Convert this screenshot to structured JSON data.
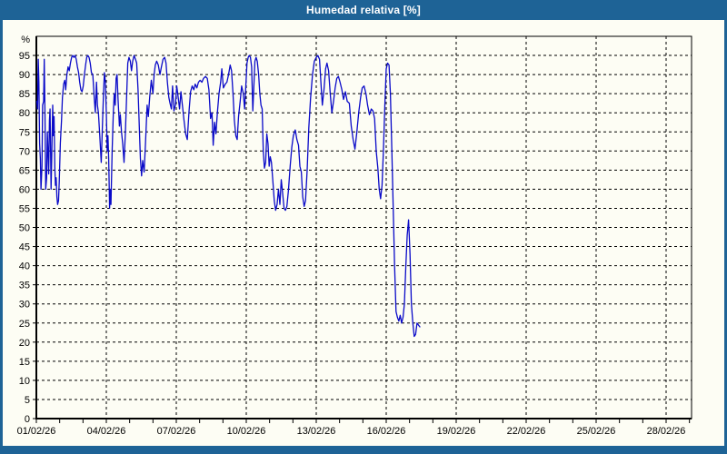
{
  "window": {
    "title": "Humedad relativa [%]"
  },
  "colors": {
    "frame": "#1E6396",
    "title_text": "#FFFFFF",
    "plot_background": "#FDFDF4",
    "line": "#0A0AC8",
    "grid_and_axis": "#000000"
  },
  "chart_data": {
    "type": "line",
    "title": "Humedad relativa [%]",
    "ylabel": "%",
    "xlabel": "",
    "ylim": [
      0,
      100
    ],
    "xlim_days": [
      0,
      28.1
    ],
    "grid": "dashed",
    "legend": "none",
    "y_ticks": [
      0,
      5,
      10,
      15,
      20,
      25,
      30,
      35,
      40,
      45,
      50,
      55,
      60,
      65,
      70,
      75,
      80,
      85,
      90,
      95
    ],
    "x_tick_days": [
      0,
      3,
      6,
      9,
      12,
      15,
      18,
      21,
      24,
      27
    ],
    "x_tick_labels": [
      "01/02/26",
      "04/02/26",
      "07/02/26",
      "10/02/26",
      "13/02/26",
      "16/02/26",
      "19/02/26",
      "22/02/26",
      "25/02/26",
      "28/02/26"
    ],
    "x_minor_tick_interval_days": 1,
    "series": [
      {
        "name": "Humedad relativa",
        "points": [
          [
            0.02,
            83
          ],
          [
            0.05,
            81
          ],
          [
            0.08,
            94
          ],
          [
            0.11,
            88
          ],
          [
            0.14,
            72
          ],
          [
            0.17,
            68
          ],
          [
            0.2,
            60
          ],
          [
            0.24,
            66
          ],
          [
            0.27,
            82
          ],
          [
            0.31,
            83
          ],
          [
            0.34,
            94
          ],
          [
            0.37,
            80
          ],
          [
            0.4,
            60
          ],
          [
            0.44,
            63
          ],
          [
            0.47,
            75
          ],
          [
            0.5,
            70
          ],
          [
            0.53,
            64
          ],
          [
            0.56,
            78
          ],
          [
            0.59,
            81
          ],
          [
            0.63,
            60
          ],
          [
            0.66,
            68
          ],
          [
            0.7,
            82
          ],
          [
            0.73,
            74
          ],
          [
            0.76,
            79
          ],
          [
            0.79,
            66
          ],
          [
            0.82,
            61
          ],
          [
            0.85,
            63
          ],
          [
            0.88,
            58
          ],
          [
            0.91,
            56
          ],
          [
            0.95,
            57
          ],
          [
            0.98,
            62
          ],
          [
            1.03,
            72
          ],
          [
            1.08,
            78
          ],
          [
            1.12,
            84
          ],
          [
            1.17,
            87.5
          ],
          [
            1.22,
            88.5
          ],
          [
            1.26,
            86
          ],
          [
            1.31,
            90
          ],
          [
            1.36,
            92
          ],
          [
            1.41,
            91
          ],
          [
            1.46,
            93
          ],
          [
            1.51,
            94.5
          ],
          [
            1.56,
            95
          ],
          [
            1.61,
            94.5
          ],
          [
            1.66,
            95
          ],
          [
            1.71,
            94
          ],
          [
            1.76,
            92
          ],
          [
            1.81,
            90.5
          ],
          [
            1.86,
            88
          ],
          [
            1.91,
            86
          ],
          [
            1.96,
            85.5
          ],
          [
            2.01,
            87
          ],
          [
            2.06,
            90
          ],
          [
            2.11,
            92.5
          ],
          [
            2.16,
            94.5
          ],
          [
            2.21,
            95
          ],
          [
            2.26,
            94.5
          ],
          [
            2.31,
            93
          ],
          [
            2.36,
            90.5
          ],
          [
            2.42,
            90
          ],
          [
            2.48,
            84
          ],
          [
            2.53,
            80
          ],
          [
            2.58,
            88
          ],
          [
            2.62,
            82
          ],
          [
            2.66,
            80
          ],
          [
            2.72,
            74
          ],
          [
            2.78,
            67
          ],
          [
            2.84,
            78
          ],
          [
            2.88,
            85
          ],
          [
            2.92,
            90.5
          ],
          [
            2.96,
            88
          ],
          [
            3.0,
            80
          ],
          [
            3.04,
            70
          ],
          [
            3.07,
            74
          ],
          [
            3.1,
            68
          ],
          [
            3.14,
            55
          ],
          [
            3.17,
            60
          ],
          [
            3.2,
            56
          ],
          [
            3.25,
            70
          ],
          [
            3.3,
            80
          ],
          [
            3.34,
            85
          ],
          [
            3.38,
            82
          ],
          [
            3.42,
            89
          ],
          [
            3.46,
            90
          ],
          [
            3.5,
            84
          ],
          [
            3.56,
            76.5
          ],
          [
            3.6,
            79.5
          ],
          [
            3.65,
            75
          ],
          [
            3.7,
            72
          ],
          [
            3.76,
            67
          ],
          [
            3.82,
            75
          ],
          [
            3.88,
            86
          ],
          [
            3.92,
            93
          ],
          [
            3.97,
            94.5
          ],
          [
            4.03,
            93.5
          ],
          [
            4.08,
            91
          ],
          [
            4.13,
            93.5
          ],
          [
            4.19,
            95
          ],
          [
            4.25,
            94
          ],
          [
            4.3,
            93
          ],
          [
            4.36,
            86
          ],
          [
            4.4,
            79
          ],
          [
            4.46,
            68
          ],
          [
            4.51,
            63.5
          ],
          [
            4.56,
            67.5
          ],
          [
            4.62,
            64.5
          ],
          [
            4.68,
            72
          ],
          [
            4.75,
            82
          ],
          [
            4.8,
            79
          ],
          [
            4.86,
            84
          ],
          [
            4.93,
            88.5
          ],
          [
            5.0,
            85
          ],
          [
            5.05,
            90
          ],
          [
            5.1,
            92.5
          ],
          [
            5.16,
            93.5
          ],
          [
            5.23,
            92.5
          ],
          [
            5.3,
            90
          ],
          [
            5.36,
            92
          ],
          [
            5.43,
            94
          ],
          [
            5.5,
            94.5
          ],
          [
            5.56,
            93
          ],
          [
            5.62,
            88
          ],
          [
            5.68,
            84
          ],
          [
            5.73,
            82.5
          ],
          [
            5.79,
            81
          ],
          [
            5.84,
            87
          ],
          [
            5.9,
            80.5
          ],
          [
            5.96,
            82
          ],
          [
            6.02,
            87
          ],
          [
            6.08,
            84
          ],
          [
            6.14,
            81
          ],
          [
            6.2,
            85.5
          ],
          [
            6.26,
            82
          ],
          [
            6.33,
            78
          ],
          [
            6.4,
            74.5
          ],
          [
            6.47,
            73
          ],
          [
            6.54,
            80
          ],
          [
            6.61,
            85.5
          ],
          [
            6.68,
            87
          ],
          [
            6.75,
            86
          ],
          [
            6.81,
            87.5
          ],
          [
            6.88,
            86.5
          ],
          [
            6.95,
            88
          ],
          [
            7.02,
            88.5
          ],
          [
            7.1,
            88
          ],
          [
            7.17,
            89
          ],
          [
            7.25,
            89.5
          ],
          [
            7.33,
            89
          ],
          [
            7.4,
            86
          ],
          [
            7.47,
            78.5
          ],
          [
            7.53,
            80
          ],
          [
            7.58,
            71.5
          ],
          [
            7.64,
            77.5
          ],
          [
            7.7,
            74.5
          ],
          [
            7.76,
            80
          ],
          [
            7.83,
            85
          ],
          [
            7.9,
            88
          ],
          [
            7.95,
            91.5
          ],
          [
            8.02,
            86.5
          ],
          [
            8.1,
            87.5
          ],
          [
            8.17,
            88
          ],
          [
            8.24,
            90
          ],
          [
            8.31,
            92.5
          ],
          [
            8.37,
            91
          ],
          [
            8.43,
            85
          ],
          [
            8.49,
            78
          ],
          [
            8.55,
            74
          ],
          [
            8.61,
            73
          ],
          [
            8.67,
            79
          ],
          [
            8.74,
            83
          ],
          [
            8.8,
            87
          ],
          [
            8.87,
            85
          ],
          [
            8.93,
            81
          ],
          [
            8.98,
            87
          ],
          [
            9.03,
            93
          ],
          [
            9.08,
            94.5
          ],
          [
            9.13,
            95
          ],
          [
            9.18,
            94.5
          ],
          [
            9.23,
            92
          ],
          [
            9.28,
            80.5
          ],
          [
            9.32,
            86
          ],
          [
            9.37,
            93.5
          ],
          [
            9.42,
            94.5
          ],
          [
            9.47,
            93.5
          ],
          [
            9.53,
            90
          ],
          [
            9.58,
            85
          ],
          [
            9.63,
            82
          ],
          [
            9.68,
            81
          ],
          [
            9.73,
            70
          ],
          [
            9.78,
            65.5
          ],
          [
            9.83,
            67
          ],
          [
            9.88,
            74.5
          ],
          [
            9.93,
            72
          ],
          [
            9.98,
            66
          ],
          [
            10.03,
            68.5
          ],
          [
            10.08,
            67
          ],
          [
            10.14,
            62
          ],
          [
            10.2,
            57
          ],
          [
            10.26,
            54.5
          ],
          [
            10.32,
            56
          ],
          [
            10.38,
            60
          ],
          [
            10.44,
            56
          ],
          [
            10.5,
            62.5
          ],
          [
            10.56,
            59
          ],
          [
            10.62,
            55
          ],
          [
            10.68,
            54.5
          ],
          [
            10.74,
            55.5
          ],
          [
            10.81,
            60
          ],
          [
            10.88,
            66
          ],
          [
            10.95,
            71
          ],
          [
            11.02,
            74
          ],
          [
            11.1,
            75.5
          ],
          [
            11.17,
            73
          ],
          [
            11.24,
            71.5
          ],
          [
            11.3,
            66
          ],
          [
            11.36,
            64.5
          ],
          [
            11.42,
            58
          ],
          [
            11.48,
            55.5
          ],
          [
            11.54,
            57
          ],
          [
            11.61,
            65
          ],
          [
            11.68,
            76
          ],
          [
            11.76,
            84
          ],
          [
            11.84,
            90
          ],
          [
            11.92,
            93.5
          ],
          [
            12.0,
            94.5
          ],
          [
            12.07,
            95
          ],
          [
            12.14,
            94
          ],
          [
            12.2,
            88
          ],
          [
            12.26,
            82
          ],
          [
            12.33,
            86
          ],
          [
            12.4,
            91.5
          ],
          [
            12.46,
            93
          ],
          [
            12.53,
            91
          ],
          [
            12.6,
            85
          ],
          [
            12.67,
            80
          ],
          [
            12.74,
            83
          ],
          [
            12.81,
            86.5
          ],
          [
            12.88,
            89
          ],
          [
            12.95,
            89.5
          ],
          [
            13.02,
            88
          ],
          [
            13.1,
            86
          ],
          [
            13.17,
            83.5
          ],
          [
            13.25,
            85.5
          ],
          [
            13.33,
            83
          ],
          [
            13.42,
            82.5
          ],
          [
            13.5,
            76.5
          ],
          [
            13.58,
            73
          ],
          [
            13.66,
            70.5
          ],
          [
            13.74,
            75
          ],
          [
            13.82,
            80
          ],
          [
            13.9,
            84
          ],
          [
            13.97,
            86.5
          ],
          [
            14.05,
            87
          ],
          [
            14.13,
            85
          ],
          [
            14.2,
            82
          ],
          [
            14.28,
            79.5
          ],
          [
            14.36,
            81
          ],
          [
            14.43,
            80.5
          ],
          [
            14.5,
            78.5
          ],
          [
            14.57,
            70
          ],
          [
            14.64,
            65.5
          ],
          [
            14.7,
            60
          ],
          [
            14.76,
            57.5
          ],
          [
            14.82,
            61
          ],
          [
            14.88,
            70
          ],
          [
            14.94,
            82
          ],
          [
            15.0,
            91.5
          ],
          [
            15.06,
            93
          ],
          [
            15.12,
            92.5
          ],
          [
            15.18,
            85
          ],
          [
            15.24,
            70
          ],
          [
            15.3,
            55
          ],
          [
            15.36,
            40
          ],
          [
            15.42,
            28
          ],
          [
            15.48,
            26.5
          ],
          [
            15.54,
            25.5
          ],
          [
            15.6,
            27
          ],
          [
            15.66,
            25
          ],
          [
            15.72,
            26.5
          ],
          [
            15.78,
            30
          ],
          [
            15.84,
            40
          ],
          [
            15.9,
            48
          ],
          [
            15.96,
            52
          ],
          [
            16.02,
            43
          ],
          [
            16.08,
            30
          ],
          [
            16.14,
            25
          ],
          [
            16.2,
            21.5
          ],
          [
            16.26,
            22
          ],
          [
            16.32,
            25
          ],
          [
            16.38,
            24.5
          ],
          [
            16.44,
            24
          ]
        ]
      }
    ]
  }
}
